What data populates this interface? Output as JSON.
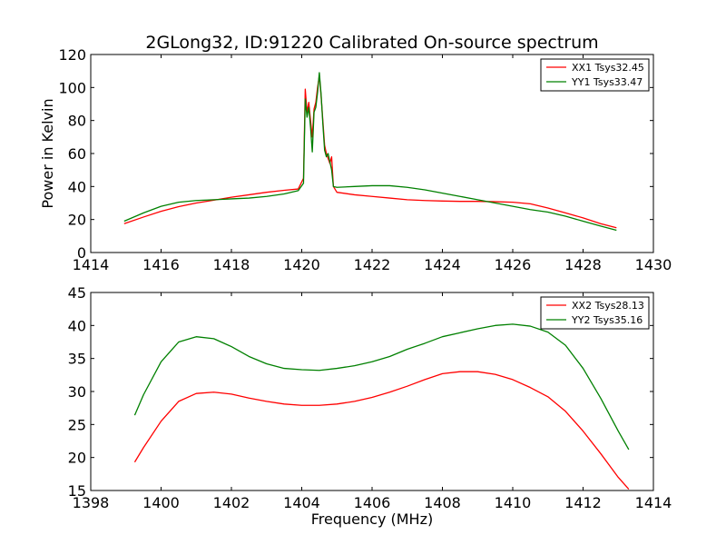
{
  "figure": {
    "title": "2GLong32, ID:91220 Calibrated On-source spectrum",
    "ylabel": "Power in Kelvin",
    "xlabel": "Frequency (MHz)"
  },
  "chart_data": [
    {
      "type": "line",
      "title": "2GLong32, ID:91220 Calibrated On-source spectrum",
      "xlabel": "",
      "ylabel": "Power in Kelvin",
      "xlim": [
        1414,
        1430
      ],
      "ylim": [
        0,
        120
      ],
      "xticks": [
        "1414",
        "1416",
        "1418",
        "1420",
        "1422",
        "1424",
        "1426",
        "1428",
        "1430"
      ],
      "yticks": [
        "0",
        "20",
        "40",
        "60",
        "80",
        "100",
        "120"
      ],
      "grid": false,
      "legend_position": "top-right",
      "series": [
        {
          "name": "XX1 Tsys32.45",
          "color": "#ff0000",
          "x": [
            1414.95,
            1415.5,
            1416,
            1416.5,
            1417,
            1417.5,
            1418,
            1418.5,
            1419,
            1419.5,
            1419.9,
            1420.05,
            1420.1,
            1420.15,
            1420.2,
            1420.25,
            1420.3,
            1420.35,
            1420.4,
            1420.45,
            1420.5,
            1420.55,
            1420.6,
            1420.65,
            1420.7,
            1420.75,
            1420.8,
            1420.85,
            1420.9,
            1421,
            1421.5,
            1422,
            1422.5,
            1423,
            1423.5,
            1424,
            1424.5,
            1425,
            1425.5,
            1426,
            1426.5,
            1427,
            1427.5,
            1428,
            1428.5,
            1428.95
          ],
          "y": [
            17.5,
            21.5,
            25,
            27.8,
            30,
            31.7,
            33.5,
            35,
            36.5,
            37.7,
            38.5,
            45,
            99,
            85,
            91,
            80,
            70,
            87,
            91,
            100,
            107,
            95,
            80,
            65,
            60,
            57,
            54,
            58,
            40,
            36.5,
            35,
            34,
            33,
            32,
            31.5,
            31.2,
            31,
            31,
            30.8,
            30.5,
            29.5,
            27,
            24,
            21,
            17.5,
            15
          ]
        },
        {
          "name": "YY1 Tsys33.47",
          "color": "#008000",
          "x": [
            1414.95,
            1415.5,
            1416,
            1416.5,
            1417,
            1417.5,
            1418,
            1418.5,
            1419,
            1419.5,
            1419.9,
            1420.05,
            1420.1,
            1420.15,
            1420.2,
            1420.25,
            1420.3,
            1420.35,
            1420.4,
            1420.45,
            1420.5,
            1420.55,
            1420.6,
            1420.65,
            1420.7,
            1420.75,
            1420.8,
            1420.85,
            1420.9,
            1421,
            1421.5,
            1422,
            1422.5,
            1423,
            1423.5,
            1424,
            1424.5,
            1425,
            1425.5,
            1426,
            1426.5,
            1427,
            1427.5,
            1428,
            1428.5,
            1428.95
          ],
          "y": [
            19,
            24,
            28,
            30.5,
            31.5,
            32,
            32.5,
            33,
            34,
            35.5,
            37.5,
            42,
            93,
            82,
            88,
            76,
            61,
            85,
            88,
            97,
            109,
            96,
            78,
            62,
            58,
            60,
            55,
            50,
            40,
            39.5,
            40,
            40.5,
            40.5,
            39.5,
            38,
            36,
            34,
            32,
            30,
            28,
            26,
            24.5,
            22,
            19,
            16,
            13.5
          ]
        }
      ]
    },
    {
      "type": "line",
      "title": "",
      "xlabel": "Frequency (MHz)",
      "ylabel": "",
      "xlim": [
        1398,
        1414
      ],
      "ylim": [
        15,
        45
      ],
      "xticks": [
        "1398",
        "1400",
        "1402",
        "1404",
        "1406",
        "1408",
        "1410",
        "1412",
        "1414"
      ],
      "yticks": [
        "15",
        "20",
        "25",
        "30",
        "35",
        "40",
        "45"
      ],
      "grid": false,
      "legend_position": "top-right",
      "series": [
        {
          "name": "XX2 Tsys28.13",
          "color": "#ff0000",
          "x": [
            1399.25,
            1399.5,
            1400,
            1400.5,
            1401,
            1401.5,
            1402,
            1402.5,
            1403,
            1403.5,
            1404,
            1404.5,
            1405,
            1405.5,
            1406,
            1406.5,
            1407,
            1407.5,
            1408,
            1408.5,
            1409,
            1409.5,
            1410,
            1410.5,
            1411,
            1411.5,
            1412,
            1412.5,
            1413,
            1413.3
          ],
          "y": [
            19.3,
            21.5,
            25.5,
            28.5,
            29.7,
            29.9,
            29.6,
            29,
            28.5,
            28.1,
            27.9,
            27.9,
            28.1,
            28.5,
            29.1,
            29.9,
            30.8,
            31.8,
            32.7,
            33,
            33,
            32.6,
            31.8,
            30.6,
            29.2,
            27,
            24,
            20.6,
            17,
            15.2
          ]
        },
        {
          "name": "YY2 Tsys35.16",
          "color": "#008000",
          "x": [
            1399.25,
            1399.5,
            1400,
            1400.5,
            1401,
            1401.5,
            1402,
            1402.5,
            1403,
            1403.5,
            1404,
            1404.5,
            1405,
            1405.5,
            1406,
            1406.5,
            1407,
            1407.5,
            1408,
            1408.5,
            1409,
            1409.5,
            1410,
            1410.5,
            1411,
            1411.5,
            1412,
            1412.5,
            1413,
            1413.3
          ],
          "y": [
            26.4,
            29.5,
            34.5,
            37.5,
            38.3,
            38,
            36.8,
            35.3,
            34.2,
            33.5,
            33.3,
            33.2,
            33.5,
            33.9,
            34.5,
            35.3,
            36.4,
            37.3,
            38.3,
            38.9,
            39.5,
            40,
            40.2,
            39.9,
            39,
            37,
            33.5,
            29,
            24,
            21.2
          ]
        }
      ]
    }
  ]
}
